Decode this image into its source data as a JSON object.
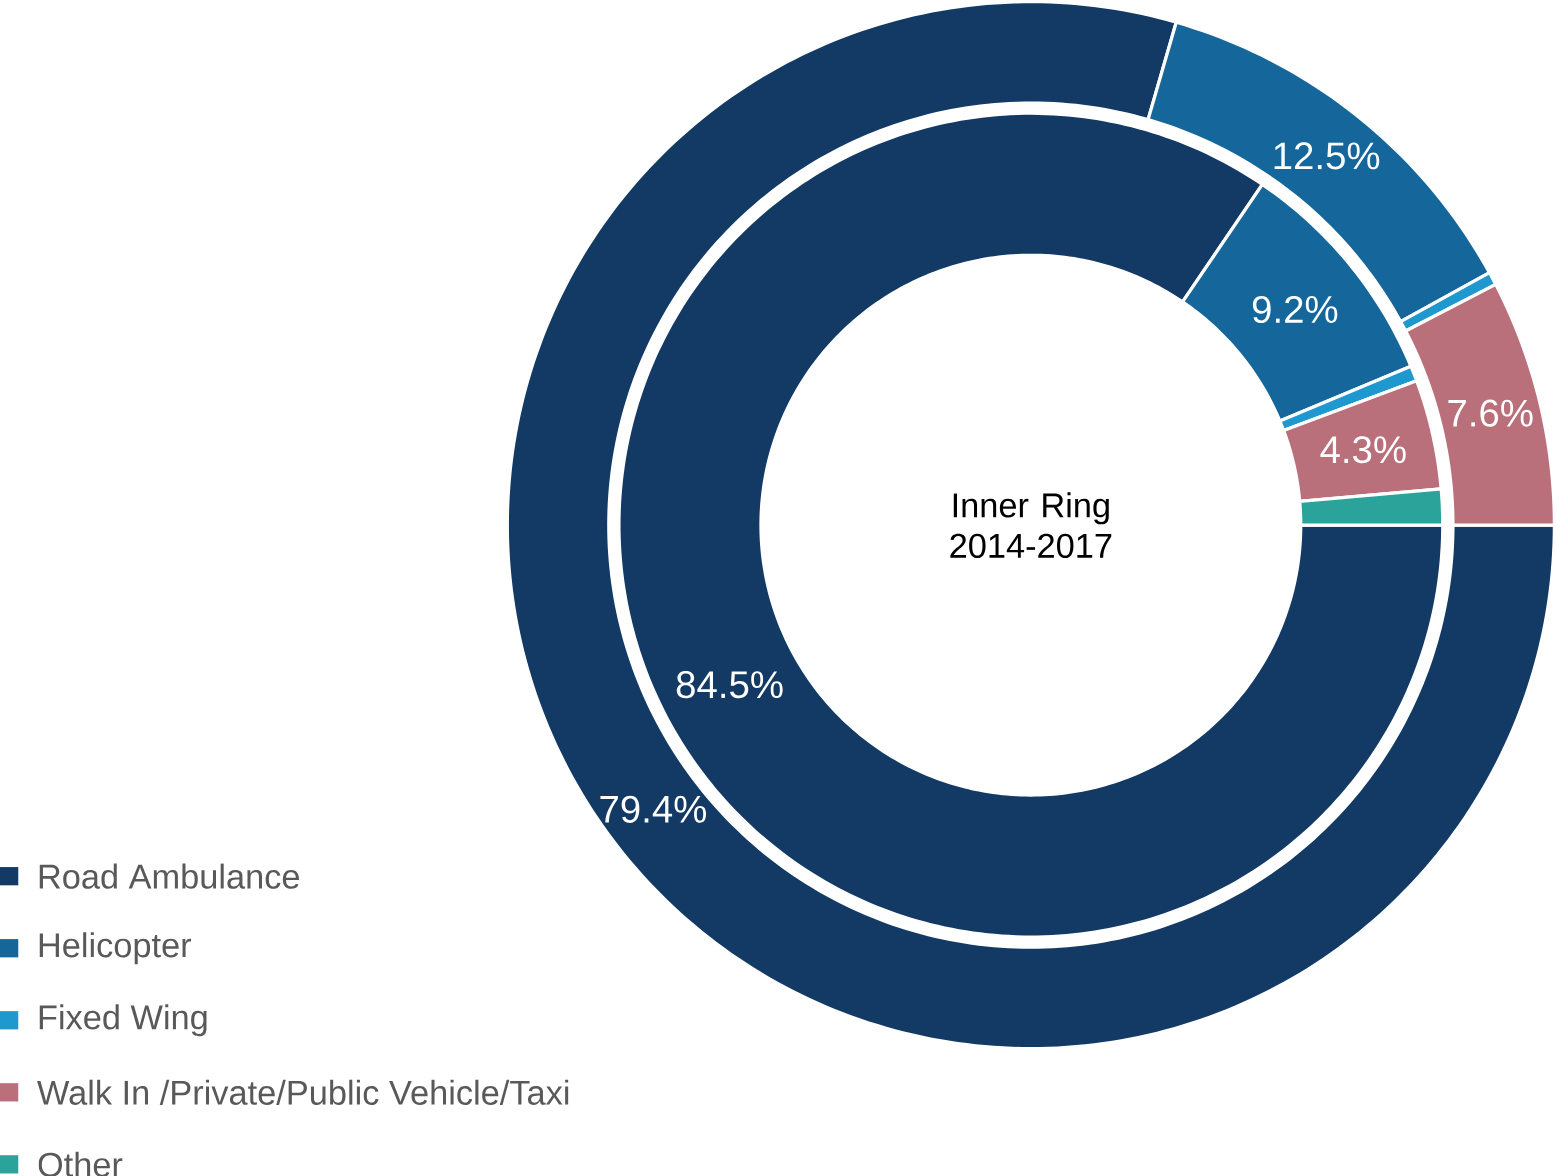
{
  "chart_data": {
    "type": "donut",
    "categories": [
      "Road Ambulance",
      "Helicopter",
      "Fixed Wing",
      "Walk In /Private/Public Vehicle/Taxi",
      "Other"
    ],
    "colors": [
      "#133a65",
      "#15679b",
      "#1f97cf",
      "#b9707b",
      "#2ca39a"
    ],
    "series": [
      {
        "values": [
          84.5,
          9.2,
          0.6,
          4.3,
          1.4
        ],
        "value_labels": [
          "84.5%",
          "9.2%",
          null,
          "4.3%",
          null
        ]
      },
      {
        "values": [
          79.4,
          12.5,
          0.4,
          7.6,
          null
        ],
        "value_labels": [
          "79.4%",
          "12.5%",
          null,
          "7.6%",
          null
        ]
      }
    ],
    "annotations": [
      "Inner Ring 2014-2017"
    ],
    "legend": "bottom left"
  }
}
